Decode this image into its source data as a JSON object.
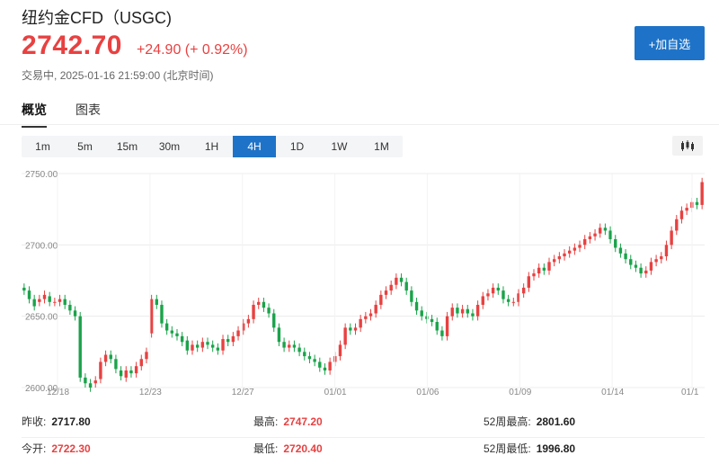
{
  "header": {
    "title": "纽约金CFD（USGC)",
    "price": "2742.70",
    "change": "+24.90 (+ 0.92%)",
    "status": "交易中,",
    "timestamp": "2025-01-16 21:59:00",
    "timezone": "(北京时间)",
    "watch_button": "+加自选"
  },
  "tabs": [
    {
      "label": "概览",
      "active": true
    },
    {
      "label": "图表",
      "active": false
    }
  ],
  "periods": [
    {
      "label": "1m",
      "active": false
    },
    {
      "label": "5m",
      "active": false
    },
    {
      "label": "15m",
      "active": false
    },
    {
      "label": "30m",
      "active": false
    },
    {
      "label": "1H",
      "active": false
    },
    {
      "label": "4H",
      "active": true
    },
    {
      "label": "1D",
      "active": false
    },
    {
      "label": "1W",
      "active": false
    },
    {
      "label": "1M",
      "active": false
    }
  ],
  "chart_type_icon": "candlestick-chart-icon",
  "colors": {
    "up": "#e84141",
    "down": "#1aa34a",
    "accent": "#1e73c8"
  },
  "chart_data": {
    "type": "candlestick",
    "y_ticks": [
      "2750.00",
      "2700.00",
      "2650.00",
      "2600.00"
    ],
    "ylim": [
      2600,
      2750
    ],
    "x_ticks": [
      "12/18",
      "12/23",
      "12/27",
      "01/01",
      "01/06",
      "01/09",
      "01/14",
      "01/1"
    ],
    "grid": true,
    "closes": [
      2668,
      2662,
      2657,
      2662,
      2665,
      2660,
      2660,
      2662,
      2658,
      2654,
      2650,
      2607,
      2603,
      2600,
      2605,
      2618,
      2623,
      2620,
      2613,
      2608,
      2612,
      2610,
      2615,
      2620,
      2625,
      2662,
      2658,
      2645,
      2640,
      2638,
      2636,
      2632,
      2626,
      2630,
      2628,
      2632,
      2630,
      2628,
      2626,
      2634,
      2632,
      2636,
      2640,
      2645,
      2648,
      2658,
      2660,
      2656,
      2652,
      2642,
      2632,
      2628,
      2630,
      2628,
      2625,
      2622,
      2620,
      2618,
      2614,
      2612,
      2618,
      2622,
      2630,
      2642,
      2640,
      2642,
      2648,
      2650,
      2652,
      2658,
      2665,
      2668,
      2672,
      2677,
      2674,
      2668,
      2660,
      2654,
      2650,
      2648,
      2646,
      2640,
      2636,
      2650,
      2656,
      2652,
      2655,
      2652,
      2650,
      2658,
      2664,
      2666,
      2670,
      2668,
      2662,
      2660,
      2660,
      2666,
      2670,
      2678,
      2680,
      2684,
      2682,
      2688,
      2690,
      2692,
      2694,
      2696,
      2698,
      2700,
      2704,
      2706,
      2708,
      2712,
      2710,
      2704,
      2698,
      2694,
      2690,
      2686,
      2684,
      2680,
      2682,
      2688,
      2690,
      2692,
      2700,
      2710,
      2718,
      2724,
      2726,
      2730,
      2728,
      2744
    ],
    "opens": [
      2670,
      2668,
      2662,
      2660,
      2662,
      2664,
      2660,
      2660,
      2662,
      2658,
      2654,
      2650,
      2607,
      2603,
      2603,
      2606,
      2618,
      2623,
      2620,
      2612,
      2607,
      2612,
      2610,
      2615,
      2620,
      2638,
      2662,
      2658,
      2645,
      2640,
      2638,
      2636,
      2633,
      2626,
      2630,
      2628,
      2632,
      2630,
      2628,
      2626,
      2634,
      2632,
      2636,
      2640,
      2645,
      2648,
      2658,
      2660,
      2656,
      2652,
      2642,
      2632,
      2628,
      2630,
      2628,
      2625,
      2622,
      2620,
      2618,
      2614,
      2612,
      2618,
      2622,
      2630,
      2642,
      2640,
      2642,
      2648,
      2650,
      2652,
      2658,
      2665,
      2668,
      2672,
      2677,
      2674,
      2668,
      2660,
      2654,
      2650,
      2648,
      2646,
      2640,
      2636,
      2650,
      2656,
      2652,
      2655,
      2652,
      2650,
      2658,
      2664,
      2666,
      2670,
      2668,
      2662,
      2660,
      2660,
      2666,
      2670,
      2678,
      2680,
      2684,
      2682,
      2688,
      2690,
      2692,
      2694,
      2696,
      2698,
      2700,
      2704,
      2706,
      2708,
      2712,
      2710,
      2704,
      2698,
      2694,
      2690,
      2686,
      2684,
      2680,
      2682,
      2688,
      2690,
      2692,
      2700,
      2710,
      2718,
      2724,
      2726,
      2730,
      2728
    ]
  },
  "stats": {
    "prev_close_label": "昨收:",
    "prev_close": "2717.80",
    "open_label": "今开:",
    "open": "2722.30",
    "high_label": "最高:",
    "high": "2747.20",
    "low_label": "最低:",
    "low": "2720.40",
    "high52_label": "52周最高:",
    "high52": "2801.60",
    "low52_label": "52周最低:",
    "low52": "1996.80"
  }
}
